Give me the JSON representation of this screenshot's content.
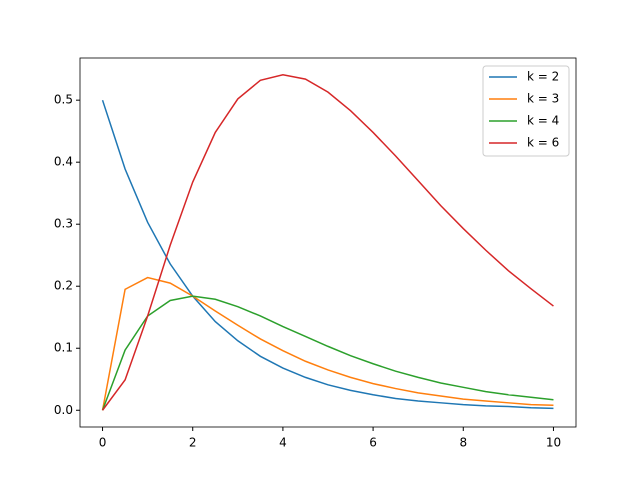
{
  "chart_data": {
    "type": "line",
    "x": [
      0,
      0.5,
      1,
      1.5,
      2,
      2.5,
      3,
      3.5,
      4,
      4.5,
      5,
      5.5,
      6,
      6.5,
      7,
      7.5,
      8,
      8.5,
      9,
      9.5,
      10
    ],
    "series": [
      {
        "name": "k = 2",
        "color": "#1f77b4",
        "values": [
          0.5,
          0.389,
          0.303,
          0.236,
          0.184,
          0.143,
          0.112,
          0.087,
          0.068,
          0.053,
          0.041,
          0.032,
          0.025,
          0.019,
          0.015,
          0.012,
          0.009,
          0.007,
          0.006,
          0.004,
          0.003
        ]
      },
      {
        "name": "k = 3",
        "color": "#ff7f0e",
        "values": [
          0,
          0.195,
          0.214,
          0.205,
          0.184,
          0.16,
          0.137,
          0.115,
          0.096,
          0.079,
          0.065,
          0.053,
          0.043,
          0.035,
          0.028,
          0.023,
          0.018,
          0.015,
          0.012,
          0.009,
          0.008
        ]
      },
      {
        "name": "k = 4",
        "color": "#2ca02c",
        "values": [
          0,
          0.097,
          0.152,
          0.177,
          0.184,
          0.179,
          0.167,
          0.152,
          0.135,
          0.119,
          0.103,
          0.088,
          0.075,
          0.063,
          0.053,
          0.044,
          0.037,
          0.03,
          0.025,
          0.021,
          0.017
        ]
      },
      {
        "name": "k = 6",
        "color": "#d62728",
        "values": [
          0,
          0.049,
          0.152,
          0.266,
          0.368,
          0.448,
          0.502,
          0.532,
          0.541,
          0.534,
          0.513,
          0.483,
          0.448,
          0.41,
          0.37,
          0.33,
          0.293,
          0.258,
          0.225,
          0.196,
          0.168
        ]
      }
    ],
    "xlim": [
      -0.5,
      10.5
    ],
    "xticks": [
      0,
      2,
      4,
      6,
      8,
      10
    ],
    "ylim": [
      -0.027,
      0.568
    ],
    "yticks": [
      {
        "value": 0,
        "label": "0.0"
      },
      0.1,
      0.2,
      0.3,
      0.4,
      0.5
    ],
    "legend": "upper right"
  }
}
